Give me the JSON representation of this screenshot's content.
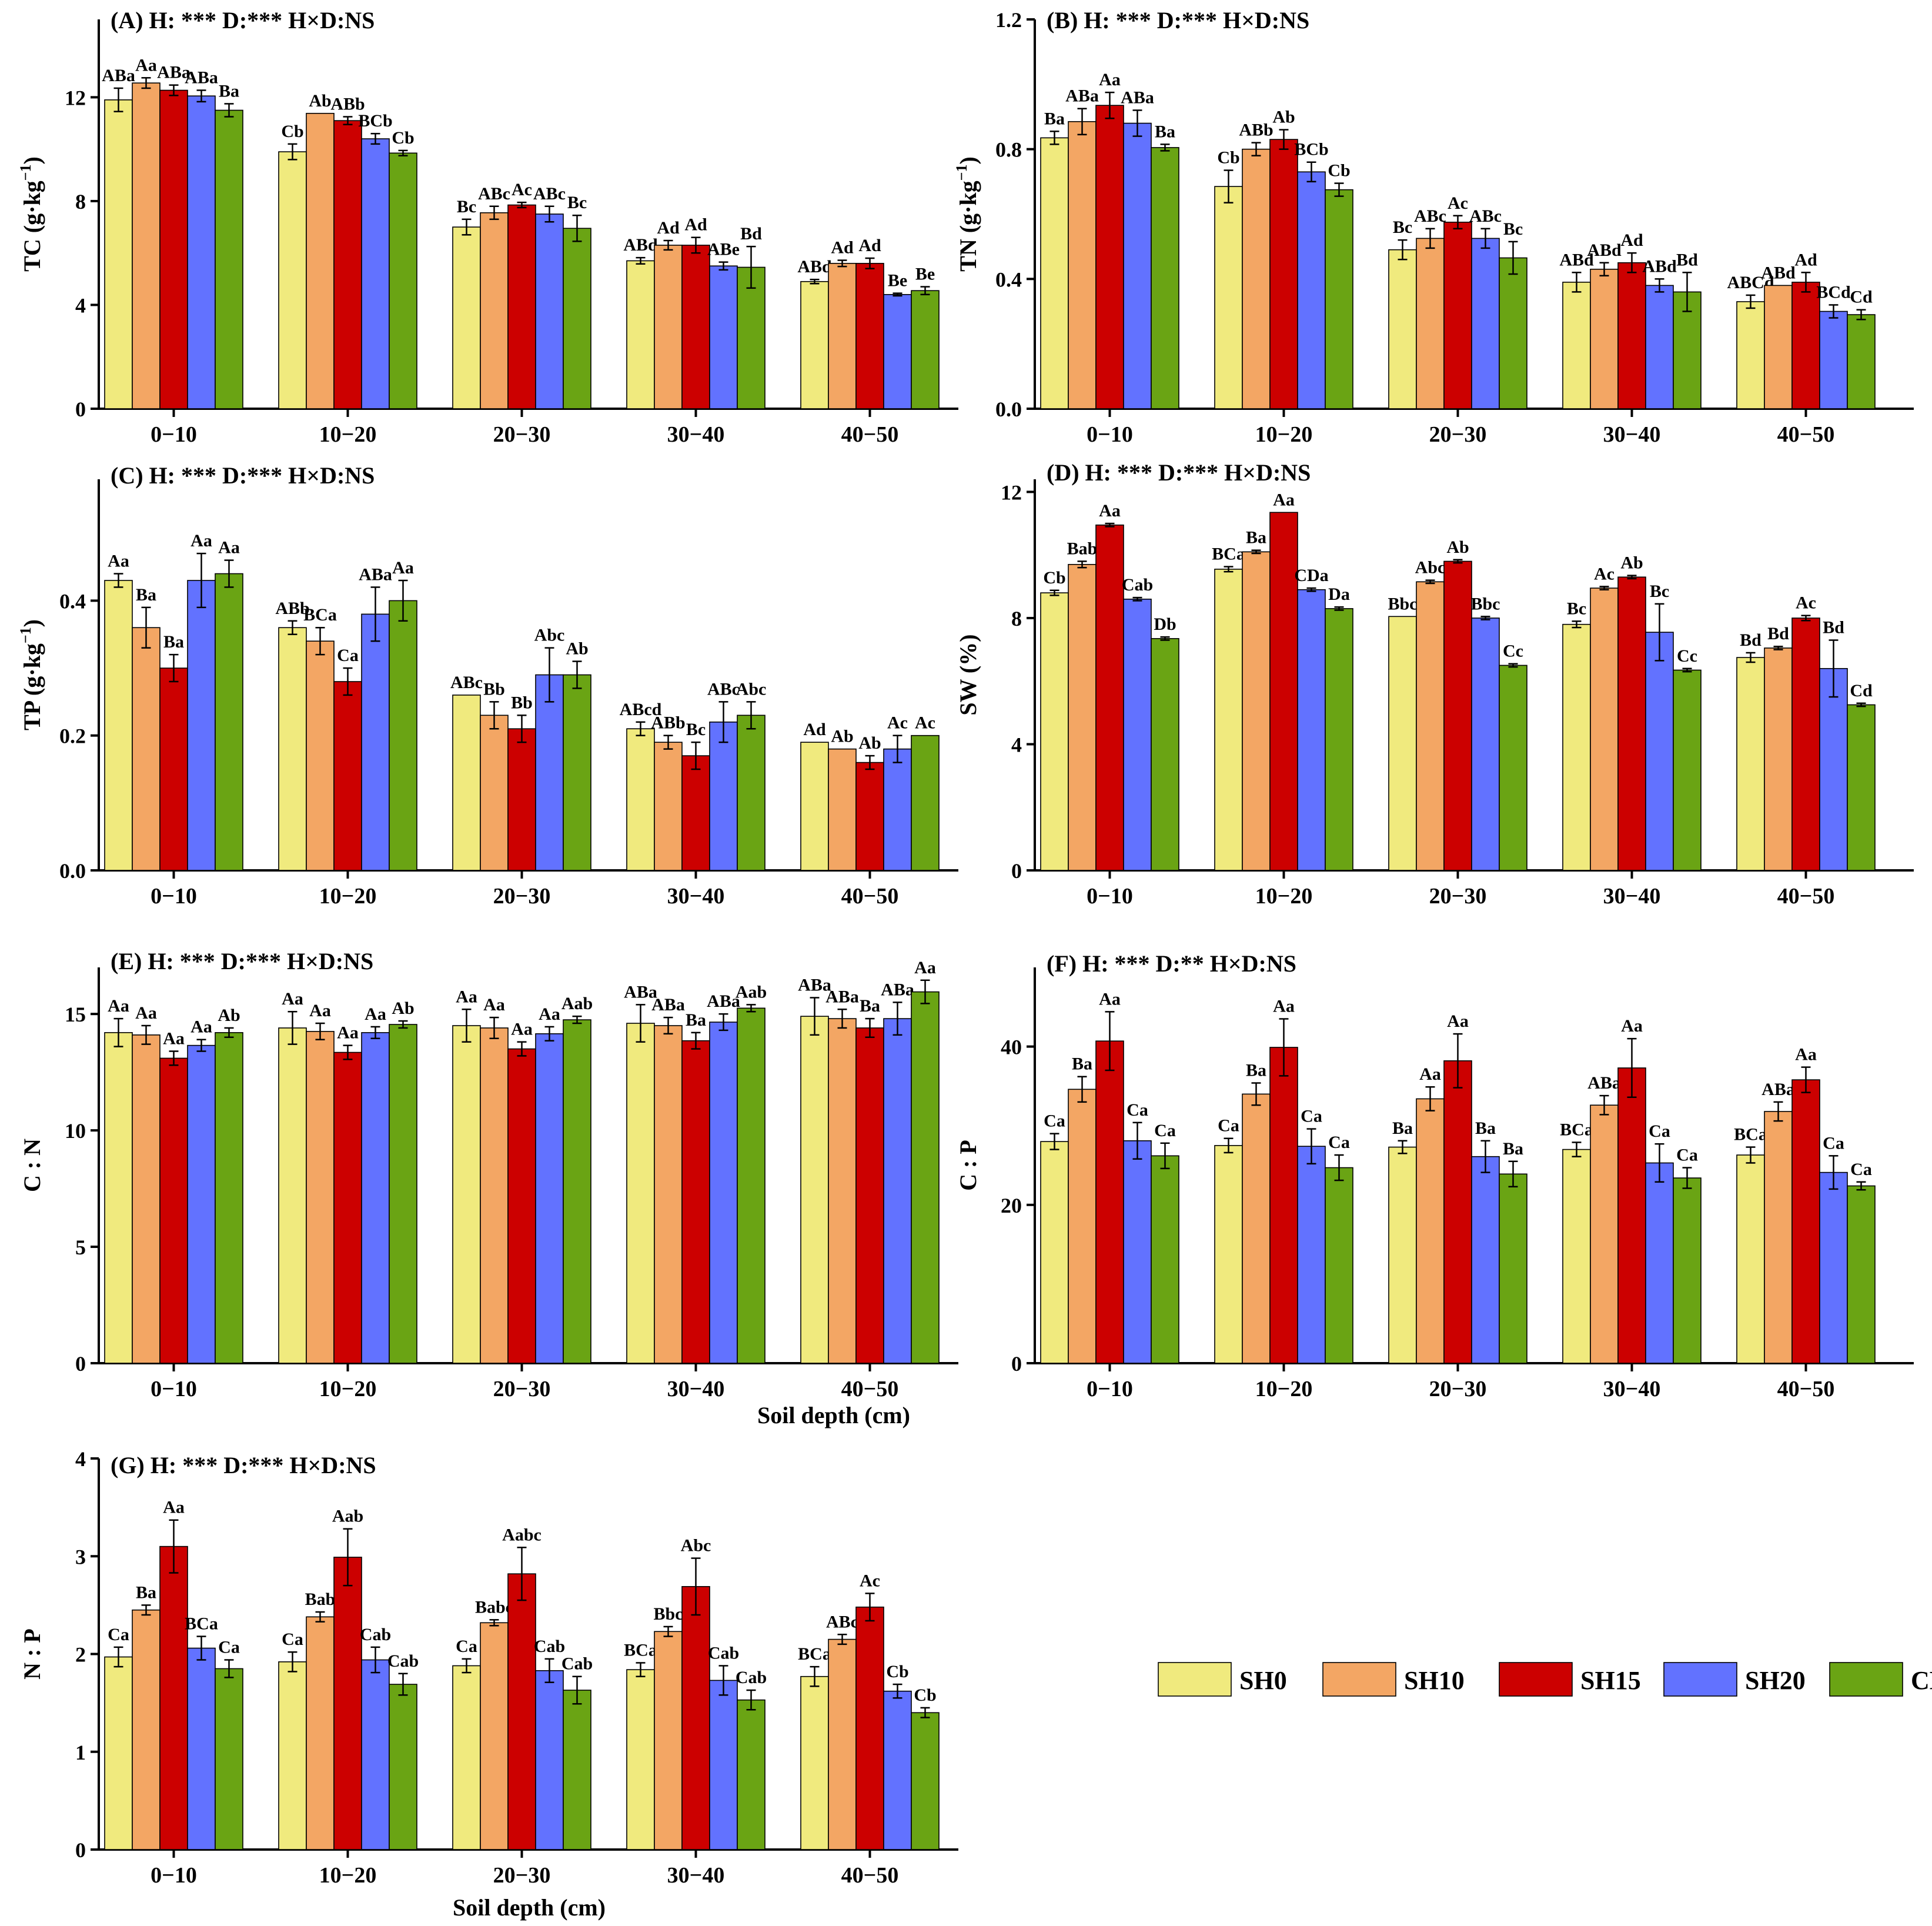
{
  "figure": {
    "xlabel": "Soil depth (cm)",
    "legend": [
      {
        "name": "SH0",
        "color": "#f0ea7e"
      },
      {
        "name": "SH10",
        "color": "#f3a664"
      },
      {
        "name": "SH15",
        "color": "#cc0000"
      },
      {
        "name": "SH20",
        "color": "#6272ff"
      },
      {
        "name": "CK",
        "color": "#6aa414"
      }
    ]
  },
  "chart_data": [
    {
      "panel": "A",
      "type": "bar",
      "title": "(A)  H: ***    D:***    H×D:NS",
      "ylabel": "TC",
      "yunit_base": "g·kg",
      "yunit_exp": "−1",
      "categories": [
        "0−10",
        "10−20",
        "20−30",
        "30−40",
        "40−50"
      ],
      "ylim": [
        0,
        15
      ],
      "yticks": [
        "0",
        "4",
        "8",
        "12"
      ],
      "ytick_values": [
        0,
        4,
        8,
        12
      ],
      "series": [
        {
          "name": "SH0",
          "values": [
            11.9,
            9.9,
            7.0,
            5.7,
            4.9
          ],
          "errors": [
            0.45,
            0.3,
            0.3,
            0.12,
            0.08
          ],
          "labels": [
            "ABa",
            "Cb",
            "Bc",
            "ABd",
            "ABd"
          ]
        },
        {
          "name": "SH10",
          "values": [
            12.55,
            11.38,
            7.55,
            6.3,
            5.6
          ],
          "errors": [
            0.2,
            0.0,
            0.25,
            0.18,
            0.12
          ],
          "labels": [
            "Aa",
            "Ab",
            "ABc",
            "Ad",
            "Ad"
          ]
        },
        {
          "name": "SH15",
          "values": [
            12.27,
            11.1,
            7.85,
            6.3,
            5.6
          ],
          "errors": [
            0.2,
            0.15,
            0.1,
            0.3,
            0.2
          ],
          "labels": [
            "ABa",
            "ABb",
            "Ac",
            "Ad",
            "Ad"
          ]
        },
        {
          "name": "SH20",
          "values": [
            12.05,
            10.4,
            7.5,
            5.5,
            4.4
          ],
          "errors": [
            0.22,
            0.2,
            0.3,
            0.15,
            0.05
          ],
          "labels": [
            "ABa",
            "BCb",
            "ABc",
            "ABe",
            "Be"
          ]
        },
        {
          "name": "CK",
          "values": [
            11.5,
            9.85,
            6.95,
            5.45,
            4.55
          ],
          "errors": [
            0.25,
            0.1,
            0.5,
            0.8,
            0.15
          ],
          "labels": [
            "Ba",
            "Cb",
            "Bc",
            "Bd",
            "Be"
          ]
        }
      ]
    },
    {
      "panel": "B",
      "type": "bar",
      "title": "(B)  H: ***    D:***    H×D:NS",
      "ylabel": "TN",
      "yunit_base": "g·kg",
      "yunit_exp": "−1",
      "categories": [
        "0−10",
        "10−20",
        "20−30",
        "30−40",
        "40−50"
      ],
      "ylim": [
        0,
        1.2
      ],
      "yticks": [
        "0.0",
        "0.4",
        "0.8",
        "1.2"
      ],
      "ytick_values": [
        0,
        0.4,
        0.8,
        1.2
      ],
      "series": [
        {
          "name": "SH0",
          "values": [
            0.835,
            0.685,
            0.49,
            0.39,
            0.33
          ],
          "errors": [
            0.02,
            0.05,
            0.03,
            0.03,
            0.02
          ],
          "labels": [
            "Ba",
            "Cb",
            "Bc",
            "ABd",
            "ABCd"
          ]
        },
        {
          "name": "SH10",
          "values": [
            0.885,
            0.8,
            0.525,
            0.43,
            0.38
          ],
          "errors": [
            0.04,
            0.02,
            0.03,
            0.02,
            0.0
          ],
          "labels": [
            "ABa",
            "ABb",
            "ABc",
            "ABd",
            "ABd"
          ]
        },
        {
          "name": "SH15",
          "values": [
            0.935,
            0.83,
            0.575,
            0.45,
            0.39
          ],
          "errors": [
            0.04,
            0.03,
            0.02,
            0.03,
            0.03
          ],
          "labels": [
            "Aa",
            "Ab",
            "Ac",
            "Ad",
            "Ad"
          ]
        },
        {
          "name": "SH20",
          "values": [
            0.88,
            0.73,
            0.525,
            0.38,
            0.3
          ],
          "errors": [
            0.04,
            0.03,
            0.03,
            0.02,
            0.02
          ],
          "labels": [
            "ABa",
            "BCb",
            "ABc",
            "ABd",
            "BCd"
          ]
        },
        {
          "name": "CK",
          "values": [
            0.805,
            0.675,
            0.465,
            0.36,
            0.29
          ],
          "errors": [
            0.01,
            0.02,
            0.05,
            0.06,
            0.015
          ],
          "labels": [
            "Ba",
            "Cb",
            "Bc",
            "Bd",
            "Cd"
          ]
        }
      ]
    },
    {
      "panel": "C",
      "type": "bar",
      "title": "(C)  H: ***    D:***    H×D:NS",
      "ylabel": "TP",
      "yunit_base": "g·kg",
      "yunit_exp": "−1",
      "categories": [
        "0−10",
        "10−20",
        "20−30",
        "30−40",
        "40−50"
      ],
      "ylim": [
        0,
        0.58
      ],
      "yticks": [
        "0.0",
        "0.2",
        "0.4"
      ],
      "ytick_values": [
        0,
        0.2,
        0.4
      ],
      "series": [
        {
          "name": "SH0",
          "values": [
            0.43,
            0.36,
            0.26,
            0.21,
            0.19
          ],
          "errors": [
            0.01,
            0.01,
            0.0,
            0.01,
            0.0
          ],
          "labels": [
            "Aa",
            "ABb",
            "ABc",
            "ABcd",
            "Ad"
          ]
        },
        {
          "name": "SH10",
          "values": [
            0.36,
            0.34,
            0.23,
            0.19,
            0.18
          ],
          "errors": [
            0.03,
            0.02,
            0.02,
            0.01,
            0.0
          ],
          "labels": [
            "Ba",
            "BCa",
            "Bb",
            "ABb",
            "Ab"
          ]
        },
        {
          "name": "SH15",
          "values": [
            0.3,
            0.28,
            0.21,
            0.17,
            0.16
          ],
          "errors": [
            0.02,
            0.02,
            0.02,
            0.02,
            0.01
          ],
          "labels": [
            "Ba",
            "Ca",
            "Bb",
            "Bc",
            "Ab"
          ]
        },
        {
          "name": "SH20",
          "values": [
            0.43,
            0.38,
            0.29,
            0.22,
            0.18
          ],
          "errors": [
            0.04,
            0.04,
            0.04,
            0.03,
            0.02
          ],
          "labels": [
            "Aa",
            "ABa",
            "Abc",
            "ABc",
            "Ac"
          ]
        },
        {
          "name": "CK",
          "values": [
            0.44,
            0.4,
            0.29,
            0.23,
            0.2
          ],
          "errors": [
            0.02,
            0.03,
            0.02,
            0.02,
            0.0
          ],
          "labels": [
            "Aa",
            "Aa",
            "Ab",
            "Abc",
            "Ac"
          ]
        }
      ]
    },
    {
      "panel": "D",
      "type": "bar",
      "title": "(D)  H: ***    D:***    H×D:NS",
      "ylabel": "SW  (%)",
      "categories": [
        "0−10",
        "10−20",
        "20−30",
        "30−40",
        "40−50"
      ],
      "ylim": [
        0,
        12.4
      ],
      "yticks": [
        "0",
        "4",
        "8",
        "12"
      ],
      "ytick_values": [
        0,
        4,
        8,
        12
      ],
      "series": [
        {
          "name": "SH0",
          "values": [
            8.8,
            9.55,
            8.05,
            7.8,
            6.75
          ],
          "errors": [
            0.08,
            0.08,
            0.0,
            0.1,
            0.15
          ],
          "labels": [
            "Cb",
            "BCa",
            "Bbc",
            "Bc",
            "Bd"
          ]
        },
        {
          "name": "SH10",
          "values": [
            9.7,
            10.1,
            9.15,
            8.95,
            7.05
          ],
          "errors": [
            0.1,
            0.05,
            0.05,
            0.05,
            0.05
          ],
          "labels": [
            "Bab",
            "Ba",
            "Abc",
            "Ac",
            "Bd"
          ]
        },
        {
          "name": "SH15",
          "values": [
            10.95,
            11.35,
            9.8,
            9.3,
            8.0
          ],
          "errors": [
            0.05,
            0.0,
            0.05,
            0.05,
            0.08
          ],
          "labels": [
            "Aa",
            "Aa",
            "Ab",
            "Ab",
            "Ac"
          ]
        },
        {
          "name": "SH20",
          "values": [
            8.6,
            8.9,
            8.0,
            7.55,
            6.4
          ],
          "errors": [
            0.05,
            0.05,
            0.05,
            0.9,
            0.9
          ],
          "labels": [
            "Cab",
            "CDa",
            "Bbc",
            "Bc",
            "Bd"
          ]
        },
        {
          "name": "CK",
          "values": [
            7.35,
            8.3,
            6.5,
            6.35,
            5.25
          ],
          "errors": [
            0.05,
            0.05,
            0.05,
            0.05,
            0.05
          ],
          "labels": [
            "Db",
            "Da",
            "Cc",
            "Cc",
            "Cd"
          ]
        }
      ]
    },
    {
      "panel": "E",
      "type": "bar",
      "title": "(E)  H: ***    D:***    H×D:NS",
      "ylabel": "C : N",
      "categories": [
        "0−10",
        "10−20",
        "20−30",
        "30−40",
        "40−50"
      ],
      "ylim": [
        0,
        17
      ],
      "yticks": [
        "0",
        "5",
        "10",
        "15"
      ],
      "ytick_values": [
        0,
        5,
        10,
        15
      ],
      "series": [
        {
          "name": "SH0",
          "values": [
            14.2,
            14.4,
            14.5,
            14.6,
            14.9
          ],
          "errors": [
            0.6,
            0.7,
            0.7,
            0.8,
            0.8
          ],
          "labels": [
            "Aa",
            "Aa",
            "Aa",
            "ABa",
            "ABa"
          ]
        },
        {
          "name": "SH10",
          "values": [
            14.1,
            14.25,
            14.4,
            14.5,
            14.8
          ],
          "errors": [
            0.4,
            0.35,
            0.45,
            0.35,
            0.4
          ],
          "labels": [
            "Aa",
            "Aa",
            "Aa",
            "ABa",
            "ABa"
          ]
        },
        {
          "name": "SH15",
          "values": [
            13.1,
            13.35,
            13.5,
            13.85,
            14.4
          ],
          "errors": [
            0.3,
            0.3,
            0.3,
            0.35,
            0.4
          ],
          "labels": [
            "Aa",
            "Aa",
            "Aa",
            "Ba",
            "Ba"
          ]
        },
        {
          "name": "SH20",
          "values": [
            13.65,
            14.2,
            14.15,
            14.65,
            14.8
          ],
          "errors": [
            0.25,
            0.25,
            0.3,
            0.35,
            0.7
          ],
          "labels": [
            "Aa",
            "Aa",
            "Aa",
            "ABa",
            "ABa"
          ]
        },
        {
          "name": "CK",
          "values": [
            14.2,
            14.55,
            14.75,
            15.25,
            15.95
          ],
          "errors": [
            0.2,
            0.15,
            0.15,
            0.15,
            0.5
          ],
          "labels": [
            "Ab",
            "Ab",
            "Aab",
            "Aab",
            "Aa"
          ]
        }
      ]
    },
    {
      "panel": "F",
      "type": "bar",
      "title": "(F)  H: ***    D:**    H×D:NS",
      "ylabel": "C : P",
      "categories": [
        "0−10",
        "10−20",
        "20−30",
        "30−40",
        "40−50"
      ],
      "ylim": [
        0,
        50
      ],
      "yticks": [
        "0",
        "20",
        "40"
      ],
      "ytick_values": [
        0,
        20,
        40
      ],
      "series": [
        {
          "name": "SH0",
          "values": [
            28.0,
            27.5,
            27.3,
            27.0,
            26.3
          ],
          "errors": [
            1.0,
            0.9,
            0.8,
            0.9,
            1.0
          ],
          "labels": [
            "Ca",
            "Ca",
            "Ba",
            "BCa",
            "BCa"
          ]
        },
        {
          "name": "SH10",
          "values": [
            34.6,
            34.0,
            33.4,
            32.6,
            31.8
          ],
          "errors": [
            1.6,
            1.4,
            1.5,
            1.2,
            1.2
          ],
          "labels": [
            "Ba",
            "Ba",
            "Aa",
            "ABa",
            "ABa"
          ]
        },
        {
          "name": "SH15",
          "values": [
            40.7,
            39.9,
            38.2,
            37.3,
            35.8
          ],
          "errors": [
            3.7,
            3.6,
            3.4,
            3.7,
            1.6
          ],
          "labels": [
            "Aa",
            "Aa",
            "Aa",
            "Aa",
            "Aa"
          ]
        },
        {
          "name": "SH20",
          "values": [
            28.1,
            27.4,
            26.1,
            25.3,
            24.1
          ],
          "errors": [
            2.3,
            2.2,
            2.0,
            2.4,
            2.1
          ],
          "labels": [
            "Ca",
            "Ca",
            "Ba",
            "Ca",
            "Ca"
          ]
        },
        {
          "name": "CK",
          "values": [
            26.2,
            24.7,
            23.9,
            23.4,
            22.4
          ],
          "errors": [
            1.6,
            1.6,
            1.6,
            1.3,
            0.5
          ],
          "labels": [
            "Ca",
            "Ca",
            "Ba",
            "Ca",
            "Ca"
          ]
        }
      ]
    },
    {
      "panel": "G",
      "type": "bar",
      "title": "(G)  H: ***    D:***    H×D:NS",
      "ylabel": "N : P",
      "categories": [
        "0−10",
        "10−20",
        "20−30",
        "30−40",
        "40−50"
      ],
      "ylim": [
        0,
        4
      ],
      "yticks": [
        "0",
        "1",
        "2",
        "3",
        "4"
      ],
      "ytick_values": [
        0,
        1,
        2,
        3,
        4
      ],
      "series": [
        {
          "name": "SH0",
          "values": [
            1.97,
            1.92,
            1.88,
            1.84,
            1.77
          ],
          "errors": [
            0.1,
            0.1,
            0.07,
            0.07,
            0.1
          ],
          "labels": [
            "Ca",
            "Ca",
            "Ca",
            "BCa",
            "BCa"
          ]
        },
        {
          "name": "SH10",
          "values": [
            2.45,
            2.38,
            2.32,
            2.23,
            2.15
          ],
          "errors": [
            0.05,
            0.05,
            0.03,
            0.05,
            0.05
          ],
          "labels": [
            "Ba",
            "Bab",
            "Babc",
            "Bbc",
            "ABc"
          ]
        },
        {
          "name": "SH15",
          "values": [
            3.1,
            2.99,
            2.82,
            2.69,
            2.48
          ],
          "errors": [
            0.27,
            0.29,
            0.27,
            0.29,
            0.14
          ],
          "labels": [
            "Aa",
            "Aab",
            "Aabc",
            "Abc",
            "Ac"
          ]
        },
        {
          "name": "SH20",
          "values": [
            2.06,
            1.94,
            1.83,
            1.73,
            1.62
          ],
          "errors": [
            0.12,
            0.13,
            0.12,
            0.15,
            0.07
          ],
          "labels": [
            "BCa",
            "Cab",
            "Cab",
            "Cab",
            "Cb"
          ]
        },
        {
          "name": "CK",
          "values": [
            1.85,
            1.69,
            1.63,
            1.53,
            1.4
          ],
          "errors": [
            0.09,
            0.11,
            0.14,
            0.1,
            0.05
          ],
          "labels": [
            "Ca",
            "Cab",
            "Cab",
            "Cab",
            "Cb"
          ]
        }
      ]
    }
  ]
}
